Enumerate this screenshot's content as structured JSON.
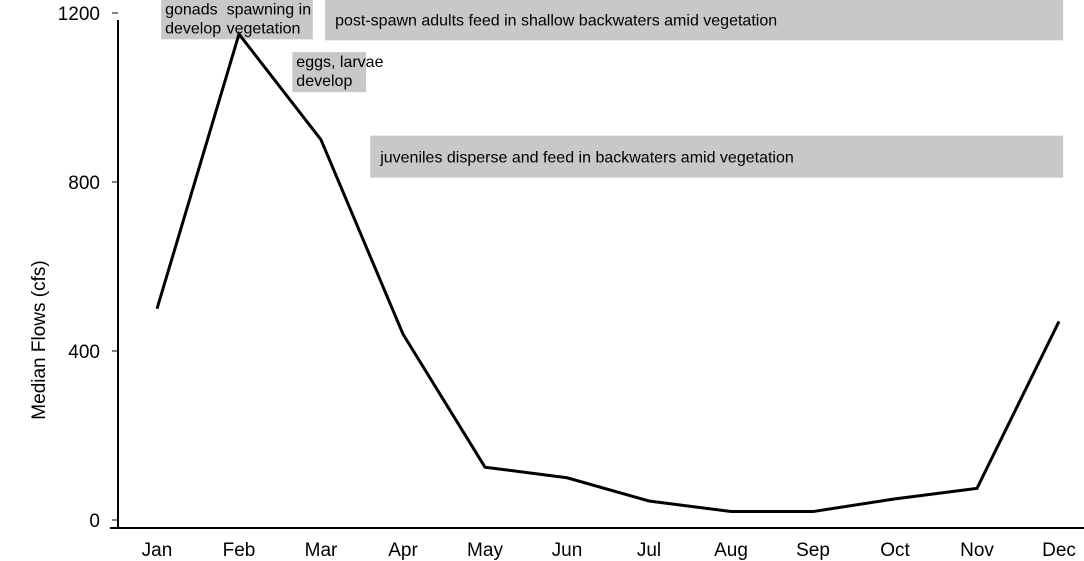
{
  "chart_data": {
    "type": "line",
    "ylabel": "Median Flows (cfs)",
    "xlabel": "",
    "categories": [
      "Jan",
      "Feb",
      "Mar",
      "Apr",
      "May",
      "Jun",
      "Jul",
      "Aug",
      "Sep",
      "Oct",
      "Nov",
      "Dec"
    ],
    "values": [
      500,
      1150,
      900,
      440,
      125,
      100,
      45,
      20,
      20,
      50,
      75,
      470
    ],
    "yticks": [
      0,
      400,
      800,
      1200
    ],
    "ylim": [
      0,
      1250
    ],
    "grid": false,
    "line_color": "#000000",
    "band_color": "#c8c8c8",
    "annotations": [
      {
        "lines": [
          "gonads",
          "develop"
        ],
        "start": 0.05,
        "end": 0.8,
        "level": 1185
      },
      {
        "lines": [
          "spawning in",
          "vegetation"
        ],
        "start": 0.8,
        "end": 1.9,
        "level": 1185
      },
      {
        "lines": [
          "post-spawn adults feed in shallow backwaters amid vegetation"
        ],
        "start": 2.05,
        "end": 11.05,
        "level": 1185
      },
      {
        "lines": [
          "eggs, larvae",
          "develop"
        ],
        "start": 1.65,
        "end": 2.55,
        "level": 1060
      },
      {
        "lines": [
          "juveniles disperse and feed in backwaters amid vegetation"
        ],
        "start": 2.6,
        "end": 11.05,
        "level": 860
      }
    ]
  }
}
